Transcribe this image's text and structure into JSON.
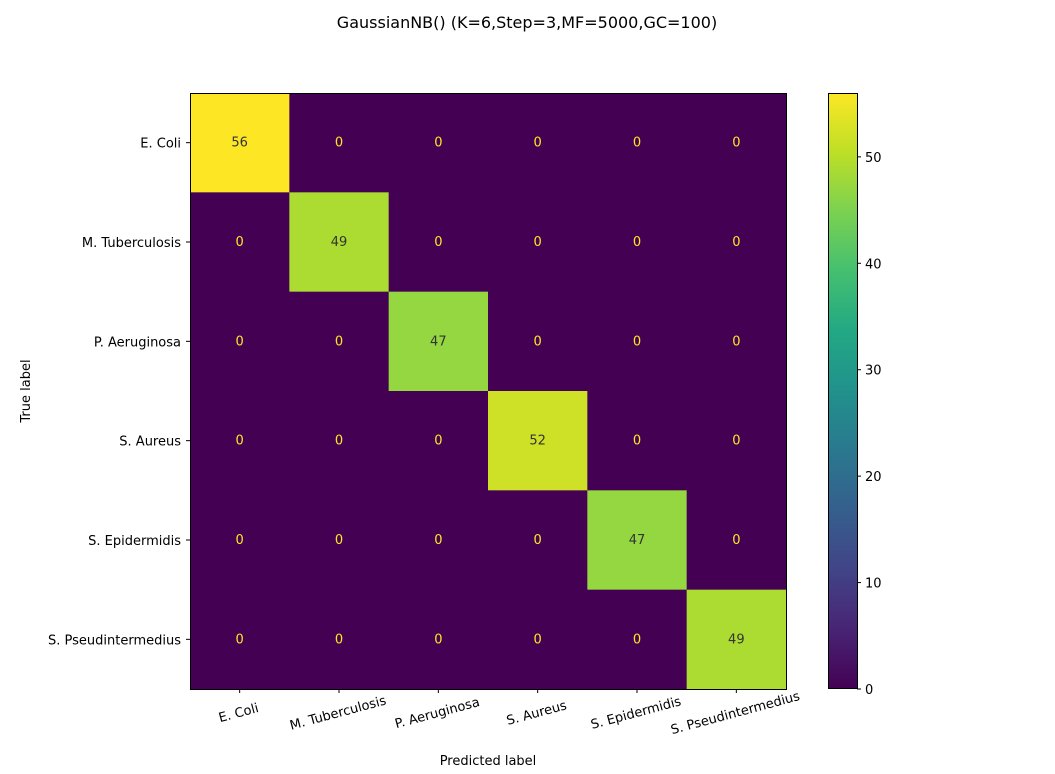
{
  "chart_data": {
    "type": "heatmap",
    "title": "GaussianNB() (K=6,Step=3,MF=5000,GC=100)",
    "xlabel": "Predicted label",
    "ylabel": "True label",
    "x_categories": [
      "E. Coli",
      "M. Tuberculosis",
      "P. Aeruginosa",
      "S. Aureus",
      "S. Epidermidis",
      "S. Pseudintermedius"
    ],
    "y_categories": [
      "E. Coli",
      "M. Tuberculosis",
      "P. Aeruginosa",
      "S. Aureus",
      "S. Epidermidis",
      "S. Pseudintermedius"
    ],
    "values": [
      [
        56,
        0,
        0,
        0,
        0,
        0
      ],
      [
        0,
        49,
        0,
        0,
        0,
        0
      ],
      [
        0,
        0,
        47,
        0,
        0,
        0
      ],
      [
        0,
        0,
        0,
        52,
        0,
        0
      ],
      [
        0,
        0,
        0,
        0,
        47,
        0
      ],
      [
        0,
        0,
        0,
        0,
        0,
        49
      ]
    ],
    "colormap": "viridis",
    "colorbar": {
      "range": [
        0,
        56
      ],
      "ticks": [
        0,
        10,
        20,
        30,
        40,
        50
      ]
    },
    "x_tick_rotation_deg": -15
  }
}
